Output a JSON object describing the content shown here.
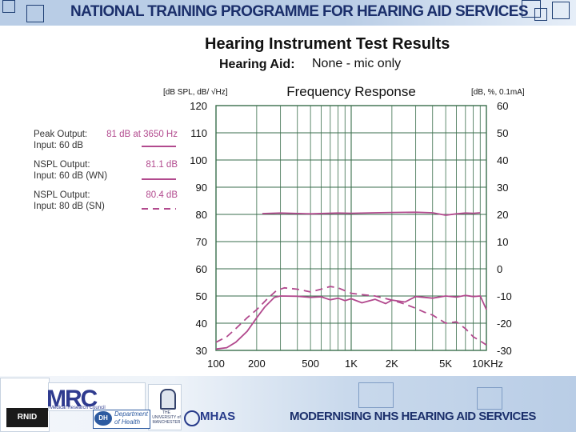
{
  "header": {
    "title": "NATIONAL TRAINING PROGRAMME FOR  HEARING AID SERVICES"
  },
  "page": {
    "title": "Hearing Instrument Test Results",
    "hearing_aid_label": "Hearing Aid:",
    "hearing_aid_value": "None - mic only"
  },
  "legend": [
    {
      "name": "Peak Output:",
      "value": "81 dB at 3650 Hz",
      "input": "Input:  60 dB",
      "style": "solid"
    },
    {
      "name": "NSPL Output:",
      "value": "81.1 dB",
      "input": "Input:  60 dB (WN)",
      "style": "solid"
    },
    {
      "name": "NSPL Output:",
      "value": "80.4 dB",
      "input": "Input:  80 dB (SN)",
      "style": "dashed"
    }
  ],
  "footer": {
    "title": "MODERNISING NHS HEARING AID SERVICES",
    "rnid": "RNID",
    "mrc": "MRC",
    "mrc_sub": "Medical Research Council",
    "dh_badge": "DH",
    "dh_text_1": "Department",
    "dh_text_2": "of Health",
    "uni_text": "THE UNIVERSITY of MANCHESTER",
    "mhas": "MHAS"
  },
  "colors": {
    "trace": "#b24a8e",
    "grid": "#3a6e4c",
    "header_text": "#1b2f6b"
  },
  "chart_data": {
    "type": "line",
    "title": "Frequency Response",
    "left_axis_label": "[dB SPL, dB/ √Hz]",
    "right_axis_label": "[dB, %, 0.1mA]",
    "x_scale": "log",
    "xlim": [
      100,
      10000
    ],
    "ylim_left": [
      30,
      120
    ],
    "ylim_right": [
      -30,
      60
    ],
    "x_ticks": [
      {
        "value": 100,
        "label": "100"
      },
      {
        "value": 200,
        "label": "200"
      },
      {
        "value": 500,
        "label": "500"
      },
      {
        "value": 1000,
        "label": "1K"
      },
      {
        "value": 2000,
        "label": "2K"
      },
      {
        "value": 5000,
        "label": "5K"
      },
      {
        "value": 10000,
        "label": "10KHz"
      }
    ],
    "y_ticks_left": [
      "120",
      "110",
      "100",
      "90",
      "80",
      "70",
      "60",
      "50",
      "40",
      "30"
    ],
    "y_ticks_right": [
      "60",
      "50",
      "40",
      "30",
      "20",
      "10",
      "0",
      "-10",
      "-20",
      "-30"
    ],
    "series": [
      {
        "name": "Peak Output (Input 60 dB)",
        "style": "solid",
        "points": [
          [
            220,
            80.3
          ],
          [
            300,
            80.5
          ],
          [
            500,
            80.2
          ],
          [
            800,
            80.5
          ],
          [
            1000,
            80.4
          ],
          [
            1500,
            80.6
          ],
          [
            2000,
            80.7
          ],
          [
            3000,
            80.8
          ],
          [
            4000,
            80.6
          ],
          [
            5000,
            79.7
          ],
          [
            6000,
            80.2
          ],
          [
            7000,
            80.5
          ],
          [
            8000,
            80.4
          ],
          [
            9000,
            80.6
          ]
        ]
      },
      {
        "name": "NSPL Output (Input 60 dB WN)",
        "style": "solid",
        "points": [
          [
            100,
            30.5
          ],
          [
            120,
            31
          ],
          [
            140,
            33
          ],
          [
            170,
            37
          ],
          [
            200,
            42
          ],
          [
            230,
            46
          ],
          [
            270,
            49.5
          ],
          [
            300,
            50
          ],
          [
            400,
            49.9
          ],
          [
            500,
            49.5
          ],
          [
            600,
            49.7
          ],
          [
            700,
            48.6
          ],
          [
            800,
            49.2
          ],
          [
            900,
            48.3
          ],
          [
            1000,
            49
          ],
          [
            1200,
            47.5
          ],
          [
            1500,
            48.8
          ],
          [
            1800,
            47.2
          ],
          [
            2000,
            48.5
          ],
          [
            2500,
            47.8
          ],
          [
            3000,
            49.8
          ],
          [
            4000,
            49.2
          ],
          [
            5000,
            50
          ],
          [
            6000,
            49.6
          ],
          [
            7000,
            50.2
          ],
          [
            8000,
            49.8
          ],
          [
            9000,
            50
          ],
          [
            10000,
            45
          ]
        ]
      },
      {
        "name": "NSPL Output (Input 80 dB SN)",
        "style": "dashed",
        "points": [
          [
            100,
            33
          ],
          [
            120,
            35
          ],
          [
            140,
            38
          ],
          [
            170,
            42
          ],
          [
            200,
            45
          ],
          [
            240,
            49
          ],
          [
            280,
            52
          ],
          [
            320,
            53
          ],
          [
            400,
            52.5
          ],
          [
            500,
            51.5
          ],
          [
            600,
            52.5
          ],
          [
            700,
            53.5
          ],
          [
            800,
            53
          ],
          [
            1000,
            51
          ],
          [
            1200,
            50.5
          ],
          [
            1500,
            50
          ],
          [
            2000,
            48.5
          ],
          [
            2500,
            47
          ],
          [
            3000,
            45.5
          ],
          [
            3500,
            44
          ],
          [
            4000,
            43
          ],
          [
            5000,
            40
          ],
          [
            6000,
            40.5
          ],
          [
            7000,
            38
          ],
          [
            8000,
            35
          ],
          [
            9000,
            33.5
          ],
          [
            10000,
            32
          ]
        ]
      }
    ]
  }
}
